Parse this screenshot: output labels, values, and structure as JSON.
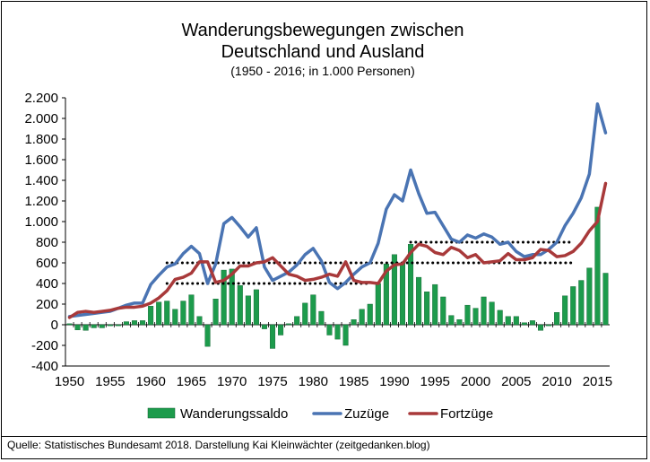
{
  "chart_data": {
    "type": "bar+line",
    "title": "Wanderungsbewegungen zwischen",
    "title2": "Deutschland und Ausland",
    "subtitle": "(1950 - 2016; in 1.000 Personen)",
    "ylim": [
      -400,
      2200
    ],
    "yticks": [
      -400,
      -200,
      0,
      200,
      400,
      600,
      800,
      1000,
      1200,
      1400,
      1600,
      1800,
      2000,
      2200
    ],
    "ytick_labels": [
      "-400",
      "-200",
      "0",
      "200",
      "400",
      "600",
      "800",
      "1.000",
      "1.200",
      "1.400",
      "1.600",
      "1.800",
      "2.000",
      "2.200"
    ],
    "xticks": [
      1950,
      1955,
      1960,
      1965,
      1970,
      1975,
      1980,
      1985,
      1990,
      1995,
      2000,
      2005,
      2010,
      2015
    ],
    "years": [
      1950,
      1951,
      1952,
      1953,
      1954,
      1955,
      1956,
      1957,
      1958,
      1959,
      1960,
      1961,
      1962,
      1963,
      1964,
      1965,
      1966,
      1967,
      1968,
      1969,
      1970,
      1971,
      1972,
      1973,
      1974,
      1975,
      1976,
      1977,
      1978,
      1979,
      1980,
      1981,
      1982,
      1983,
      1984,
      1985,
      1986,
      1987,
      1988,
      1989,
      1990,
      1991,
      1992,
      1993,
      1994,
      1995,
      1996,
      1997,
      1998,
      1999,
      2000,
      2001,
      2002,
      2003,
      2004,
      2005,
      2006,
      2007,
      2008,
      2009,
      2010,
      2011,
      2012,
      2013,
      2014,
      2015,
      2016
    ],
    "series": [
      {
        "name": "Wanderungssaldo",
        "kind": "bar",
        "color": "#1d9b4c",
        "values": [
          10,
          -50,
          -55,
          -30,
          -30,
          -10,
          -10,
          30,
          40,
          40,
          180,
          220,
          230,
          150,
          230,
          290,
          80,
          -210,
          250,
          530,
          540,
          380,
          280,
          340,
          -40,
          -230,
          -100,
          10,
          80,
          210,
          290,
          130,
          -100,
          -140,
          -200,
          50,
          150,
          200,
          400,
          590,
          680,
          600,
          780,
          460,
          320,
          390,
          270,
          90,
          50,
          190,
          160,
          270,
          220,
          140,
          80,
          80,
          20,
          40,
          -55,
          -10,
          120,
          280,
          370,
          430,
          550,
          1140,
          500
        ]
      },
      {
        "name": "Zuzüge",
        "kind": "line",
        "color": "#4a74b3",
        "values": [
          80,
          90,
          100,
          110,
          120,
          130,
          160,
          190,
          210,
          210,
          390,
          480,
          560,
          590,
          690,
          760,
          690,
          400,
          590,
          980,
          1040,
          950,
          850,
          940,
          560,
          430,
          470,
          510,
          580,
          680,
          740,
          620,
          410,
          350,
          410,
          490,
          560,
          600,
          790,
          1120,
          1260,
          1200,
          1500,
          1270,
          1080,
          1090,
          960,
          830,
          800,
          870,
          840,
          880,
          850,
          780,
          800,
          710,
          660,
          680,
          680,
          730,
          800,
          960,
          1080,
          1230,
          1460,
          2140,
          1860
        ]
      },
      {
        "name": "Fortzüge",
        "kind": "line",
        "color": "#a8393a",
        "values": [
          70,
          120,
          130,
          120,
          130,
          140,
          160,
          170,
          170,
          180,
          210,
          260,
          330,
          440,
          460,
          500,
          610,
          610,
          410,
          430,
          490,
          570,
          570,
          600,
          610,
          650,
          570,
          490,
          470,
          430,
          440,
          460,
          490,
          470,
          610,
          430,
          410,
          410,
          400,
          520,
          580,
          590,
          700,
          780,
          760,
          700,
          680,
          750,
          720,
          650,
          680,
          600,
          610,
          620,
          690,
          630,
          630,
          650,
          730,
          720,
          660,
          670,
          710,
          790,
          910,
          1000,
          1370
        ]
      }
    ],
    "reference_lines": [
      {
        "label": "dotted",
        "value": 400,
        "from": 1962,
        "to": 1987
      },
      {
        "label": "dotted",
        "value": 600,
        "from": 1962,
        "to": 2012
      },
      {
        "label": "dotted",
        "value": 800,
        "from": 1992,
        "to": 2012
      }
    ],
    "legend": [
      "Wanderungssaldo",
      "Zuzüge",
      "Fortzüge"
    ],
    "legend_position": "bottom"
  },
  "source_text": "Quelle: Statistisches Bundesamt 2018. Darstellung Kai Kleinwächter (zeitgedanken.blog)"
}
